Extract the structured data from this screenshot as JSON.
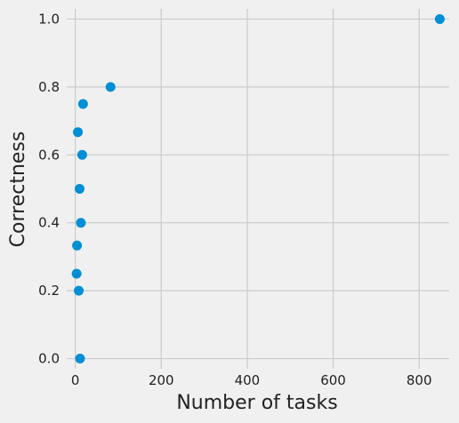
{
  "chart_data": {
    "type": "scatter",
    "title": "",
    "xlabel": "Number of tasks",
    "ylabel": "Correctness",
    "xlim": [
      -20,
      870
    ],
    "ylim": [
      -0.03,
      1.03
    ],
    "x_ticks": [
      0,
      200,
      400,
      600,
      800
    ],
    "x_tick_labels": [
      "0",
      "200",
      "400",
      "600",
      "800"
    ],
    "y_ticks": [
      0.0,
      0.2,
      0.4,
      0.6,
      0.8,
      1.0
    ],
    "y_tick_labels": [
      "0.0",
      "0.2",
      "0.4",
      "0.6",
      "0.8",
      "1.0"
    ],
    "grid": true,
    "background_color": "#f0f0f0",
    "grid_color": "#cbcbcb",
    "point_color": "#008fd5",
    "series": [
      {
        "x": [
          848,
          82,
          18,
          6,
          16,
          10,
          13,
          4,
          3,
          8,
          11
        ],
        "y": [
          1.0,
          0.8,
          0.75,
          0.667,
          0.6,
          0.5,
          0.4,
          0.333,
          0.25,
          0.2,
          0.0
        ]
      }
    ]
  }
}
